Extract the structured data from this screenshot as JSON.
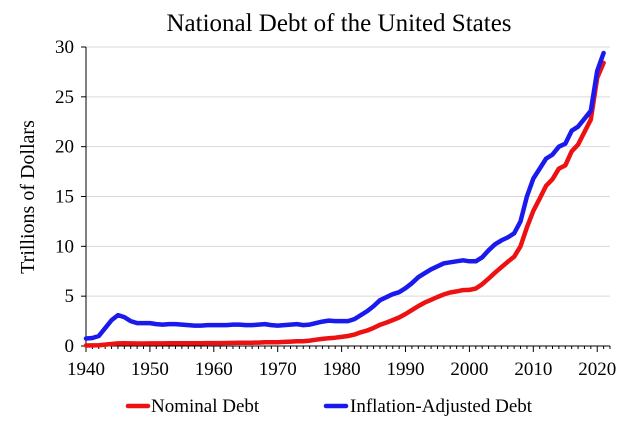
{
  "chart_data": {
    "type": "line",
    "title": "National Debt of the United States",
    "xlabel": "",
    "ylabel": "Trillions of Dollars",
    "xlim": [
      1940,
      2022
    ],
    "ylim": [
      0,
      30
    ],
    "x_ticks": [
      1940,
      1950,
      1960,
      1970,
      1980,
      1990,
      2000,
      2010,
      2020
    ],
    "y_ticks": [
      0,
      5,
      10,
      15,
      20,
      25,
      30
    ],
    "grid": "horizontal",
    "legend_position": "bottom",
    "x": [
      1940,
      1941,
      1942,
      1943,
      1944,
      1945,
      1946,
      1947,
      1948,
      1949,
      1950,
      1951,
      1952,
      1953,
      1954,
      1955,
      1956,
      1957,
      1958,
      1959,
      1960,
      1961,
      1962,
      1963,
      1964,
      1965,
      1966,
      1967,
      1968,
      1969,
      1970,
      1971,
      1972,
      1973,
      1974,
      1975,
      1976,
      1977,
      1978,
      1979,
      1980,
      1981,
      1982,
      1983,
      1984,
      1985,
      1986,
      1987,
      1988,
      1989,
      1990,
      1991,
      1992,
      1993,
      1994,
      1995,
      1996,
      1997,
      1998,
      1999,
      2000,
      2001,
      2002,
      2003,
      2004,
      2005,
      2006,
      2007,
      2008,
      2009,
      2010,
      2011,
      2012,
      2013,
      2014,
      2015,
      2016,
      2017,
      2018,
      2019,
      2020,
      2021
    ],
    "series": [
      {
        "name": "Nominal Debt",
        "color": "#ee1111",
        "values": [
          0.05,
          0.06,
          0.08,
          0.14,
          0.2,
          0.26,
          0.27,
          0.26,
          0.25,
          0.25,
          0.26,
          0.26,
          0.26,
          0.27,
          0.27,
          0.27,
          0.27,
          0.27,
          0.28,
          0.29,
          0.29,
          0.29,
          0.3,
          0.31,
          0.32,
          0.32,
          0.33,
          0.34,
          0.37,
          0.37,
          0.38,
          0.41,
          0.44,
          0.47,
          0.48,
          0.54,
          0.63,
          0.71,
          0.78,
          0.83,
          0.91,
          1.0,
          1.14,
          1.37,
          1.56,
          1.82,
          2.13,
          2.35,
          2.6,
          2.86,
          3.21,
          3.6,
          4.0,
          4.35,
          4.64,
          4.92,
          5.18,
          5.37,
          5.48,
          5.61,
          5.63,
          5.77,
          6.2,
          6.76,
          7.35,
          7.91,
          8.45,
          8.95,
          10.0,
          11.9,
          13.56,
          14.79,
          16.07,
          16.74,
          17.8,
          18.12,
          19.54,
          20.2,
          21.46,
          22.72,
          26.9,
          28.4
        ]
      },
      {
        "name": "Inflation-Adjusted Debt",
        "color": "#1a1aee",
        "values": [
          0.75,
          0.8,
          1.0,
          1.8,
          2.6,
          3.1,
          2.9,
          2.5,
          2.3,
          2.3,
          2.3,
          2.2,
          2.15,
          2.2,
          2.2,
          2.15,
          2.1,
          2.05,
          2.05,
          2.1,
          2.1,
          2.1,
          2.1,
          2.15,
          2.15,
          2.1,
          2.1,
          2.15,
          2.2,
          2.1,
          2.05,
          2.1,
          2.15,
          2.2,
          2.1,
          2.15,
          2.3,
          2.45,
          2.55,
          2.5,
          2.5,
          2.5,
          2.7,
          3.1,
          3.5,
          4.0,
          4.6,
          4.9,
          5.2,
          5.4,
          5.8,
          6.3,
          6.9,
          7.3,
          7.7,
          8.0,
          8.3,
          8.4,
          8.5,
          8.6,
          8.5,
          8.5,
          8.9,
          9.6,
          10.2,
          10.6,
          10.9,
          11.3,
          12.5,
          15.0,
          16.8,
          17.8,
          18.8,
          19.2,
          20.0,
          20.3,
          21.6,
          22.0,
          22.8,
          23.6,
          27.6,
          29.4
        ]
      }
    ]
  }
}
